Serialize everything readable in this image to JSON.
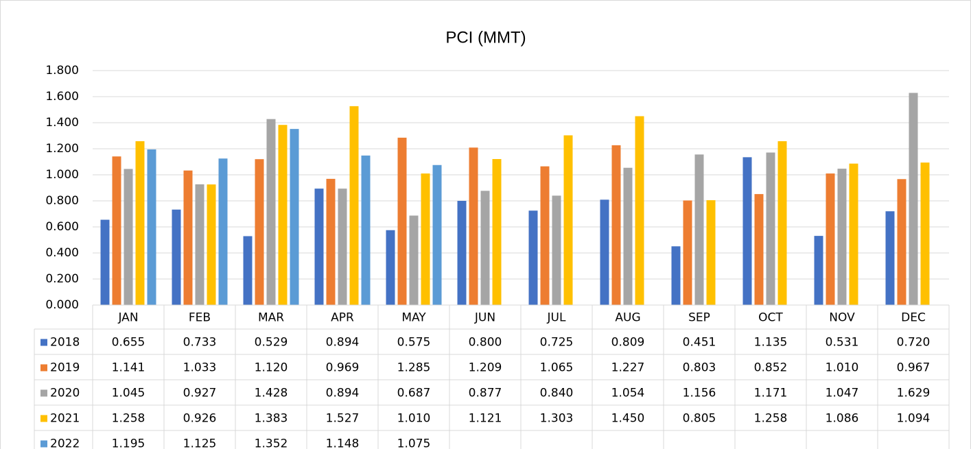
{
  "chart_data": {
    "type": "bar",
    "title": "PCI (MMT)",
    "categories": [
      "JAN",
      "FEB",
      "MAR",
      "APR",
      "MAY",
      "JUN",
      "JUL",
      "AUG",
      "SEP",
      "OCT",
      "NOV",
      "DEC"
    ],
    "series": [
      {
        "name": "2018",
        "color": "#4472c4",
        "values": [
          0.655,
          0.733,
          0.529,
          0.894,
          0.575,
          0.8,
          0.725,
          0.809,
          0.451,
          1.135,
          0.531,
          0.72
        ],
        "value_labels": [
          "0.655",
          "0.733",
          "0.529",
          "0.894",
          "0.575",
          "0.800",
          "0.725",
          "0.809",
          "0.451",
          "1.135",
          "0.531",
          "0.720"
        ]
      },
      {
        "name": "2019",
        "color": "#ed7d31",
        "values": [
          1.141,
          1.033,
          1.12,
          0.969,
          1.285,
          1.209,
          1.065,
          1.227,
          0.803,
          0.852,
          1.01,
          0.967
        ],
        "value_labels": [
          "1.141",
          "1.033",
          "1.120",
          "0.969",
          "1.285",
          "1.209",
          "1.065",
          "1.227",
          "0.803",
          "0.852",
          "1.010",
          "0.967"
        ]
      },
      {
        "name": "2020",
        "color": "#a5a5a5",
        "values": [
          1.045,
          0.927,
          1.428,
          0.894,
          0.687,
          0.877,
          0.84,
          1.054,
          1.156,
          1.171,
          1.047,
          1.629
        ],
        "value_labels": [
          "1.045",
          "0.927",
          "1.428",
          "0.894",
          "0.687",
          "0.877",
          "0.840",
          "1.054",
          "1.156",
          "1.171",
          "1.047",
          "1.629"
        ]
      },
      {
        "name": "2021",
        "color": "#ffc000",
        "values": [
          1.258,
          0.926,
          1.383,
          1.527,
          1.01,
          1.121,
          1.303,
          1.45,
          0.805,
          1.258,
          1.086,
          1.094
        ],
        "value_labels": [
          "1.258",
          "0.926",
          "1.383",
          "1.527",
          "1.010",
          "1.121",
          "1.303",
          "1.450",
          "0.805",
          "1.258",
          "1.086",
          "1.094"
        ]
      },
      {
        "name": "2022",
        "color": "#5b9bd5",
        "values": [
          1.195,
          1.125,
          1.352,
          1.148,
          1.075,
          null,
          null,
          null,
          null,
          null,
          null,
          null
        ],
        "value_labels": [
          "1.195",
          "1.125",
          "1.352",
          "1.148",
          "1.075",
          null,
          null,
          null,
          null,
          null,
          null,
          null
        ]
      }
    ],
    "ylim": [
      0,
      1.8
    ],
    "yticks": [
      {
        "value": 0,
        "label": "0.000"
      },
      {
        "value": 0.2,
        "label": "0.200"
      },
      {
        "value": 0.4,
        "label": "0.400"
      },
      {
        "value": 0.6,
        "label": "0.600"
      },
      {
        "value": 0.8,
        "label": "0.800"
      },
      {
        "value": 1,
        "label": "1.000"
      },
      {
        "value": 1.2,
        "label": "1.200"
      },
      {
        "value": 1.4,
        "label": "1.400"
      },
      {
        "value": 1.6,
        "label": "1.600"
      },
      {
        "value": 1.8,
        "label": "1.800"
      }
    ],
    "grid": true
  }
}
